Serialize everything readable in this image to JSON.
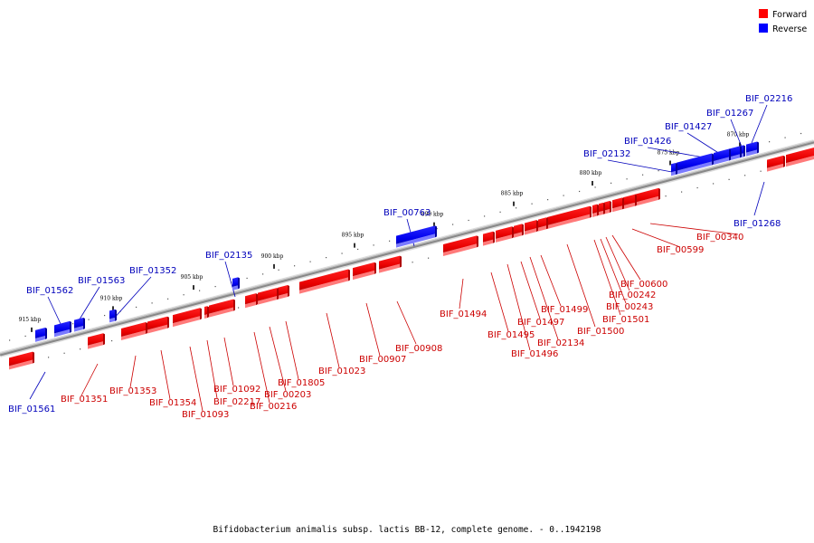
{
  "legend": {
    "forward": {
      "label": "Forward",
      "color": "#ff0000"
    },
    "reverse": {
      "label": "Reverse",
      "color": "#0000ff"
    }
  },
  "caption": "Bifidobacterium animalis subsp. lactis BB-12, complete genome. - 0..1942198",
  "ticks": [
    "870 kbp",
    "875 kbp",
    "880 kbp",
    "885 kbp",
    "890 kbp",
    "895 kbp",
    "900 kbp",
    "905 kbp",
    "910 kbp",
    "915 kbp"
  ],
  "genes_reverse": [
    "BIF_02216",
    "BIF_01267",
    "BIF_01427",
    "BIF_01426",
    "BIF_02132",
    "BIF_01268",
    "BIF_00763",
    "BIF_02135",
    "BIF_01352",
    "BIF_01563",
    "BIF_01562",
    "BIF_01561"
  ],
  "genes_forward": [
    "BIF_00340",
    "BIF_00599",
    "BIF_00600",
    "BIF_00242",
    "BIF_00243",
    "BIF_01501",
    "BIF_01500",
    "BIF_01499",
    "BIF_02134",
    "BIF_01497",
    "BIF_01496",
    "BIF_01495",
    "BIF_01494",
    "BIF_00908",
    "BIF_00907",
    "BIF_01023",
    "BIF_01805",
    "BIF_00203",
    "BIF_00216",
    "BIF_01092",
    "BIF_02217",
    "BIF_01093",
    "BIF_01354",
    "BIF_01353",
    "BIF_01351"
  ]
}
